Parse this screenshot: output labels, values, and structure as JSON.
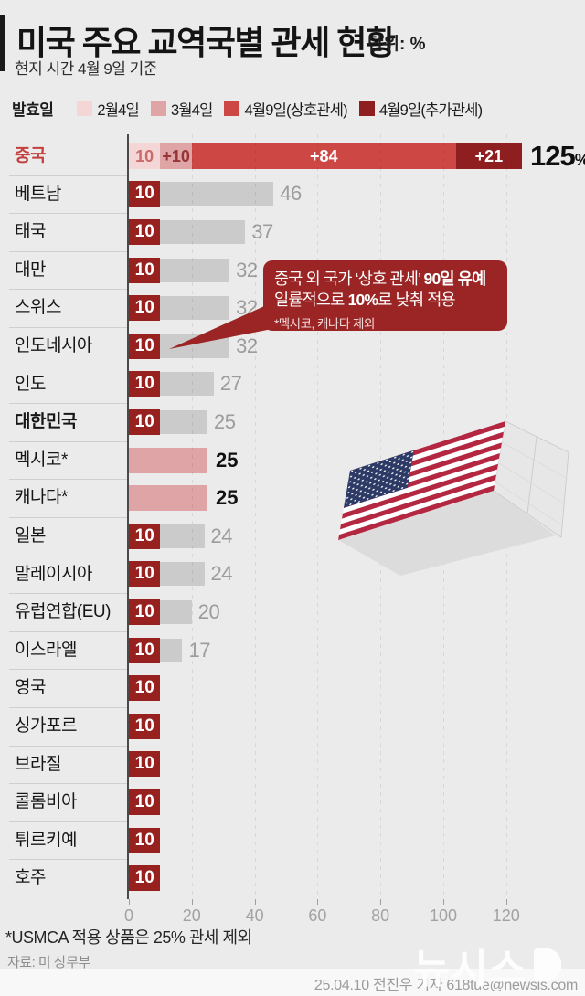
{
  "header": {
    "title": "미국 주요 교역국별 관세 현황",
    "unit_label": "단위: %",
    "subtitle": "현지 시간 4월 9일 기준"
  },
  "legend": {
    "label": "발효일",
    "items": [
      {
        "label": "2월4일",
        "color": "#f5d6d7"
      },
      {
        "label": "3월4일",
        "color": "#dfa5a6"
      },
      {
        "label": "4월9일(상호관세)",
        "color": "#cd4845"
      },
      {
        "label": "4월9일(추가관세)",
        "color": "#8e1e20"
      }
    ]
  },
  "colors": {
    "background": "#ebebeb",
    "bar_gray": "#cbcbcb",
    "base_box_red": "#97211f",
    "pink_bar": "#dfa5a6",
    "gray_value_text": "#9c9c9c",
    "china_label_red": "#c43f3d",
    "callout_bg": "#9b2424"
  },
  "chart_data": {
    "type": "bar",
    "orientation": "horizontal",
    "unit": "%",
    "xlim": [
      0,
      137
    ],
    "gridlines": [
      20,
      40,
      60,
      80,
      100,
      120
    ],
    "grid": "dashed-vertical",
    "rows": [
      {
        "country": "중국",
        "label_style": "china",
        "total": 125,
        "total_label": "125",
        "total_unit": "%",
        "segments": [
          {
            "label": "10",
            "value": 10,
            "effective": "2월4일",
            "color": "#f5d6d7",
            "text_color": "#c96b6b"
          },
          {
            "label": "+10",
            "value": 10,
            "effective": "3월4일",
            "color": "#dfa5a6",
            "text_color": "#973434"
          },
          {
            "label": "+84",
            "value": 84,
            "effective": "4월9일(상호관세)",
            "color": "#cd4845",
            "text_color": "#ffffff"
          },
          {
            "label": "+21",
            "value": 21,
            "effective": "4월9일(추가관세)",
            "color": "#8e1e20",
            "text_color": "#ffffff"
          }
        ]
      },
      {
        "country": "베트남",
        "base": 10,
        "suspended": 46
      },
      {
        "country": "태국",
        "base": 10,
        "suspended": 37
      },
      {
        "country": "대만",
        "base": 10,
        "suspended": 32
      },
      {
        "country": "스위스",
        "base": 10,
        "suspended": 32
      },
      {
        "country": "인도네시아",
        "base": 10,
        "suspended": 32
      },
      {
        "country": "인도",
        "base": 10,
        "suspended": 27
      },
      {
        "country": "대한민국",
        "label_style": "bold",
        "base": 10,
        "suspended": 25
      },
      {
        "country": "멕시코*",
        "bar_style": "pink",
        "value": 25,
        "effective": "3월4일"
      },
      {
        "country": "캐나다*",
        "bar_style": "pink",
        "value": 25,
        "effective": "3월4일"
      },
      {
        "country": "일본",
        "base": 10,
        "suspended": 24
      },
      {
        "country": "말레이시아",
        "base": 10,
        "suspended": 24
      },
      {
        "country": "유럽연합(EU)",
        "base": 10,
        "suspended": 20
      },
      {
        "country": "이스라엘",
        "base": 10,
        "suspended": 17
      },
      {
        "country": "영국",
        "base": 10
      },
      {
        "country": "싱가포르",
        "base": 10
      },
      {
        "country": "브라질",
        "base": 10
      },
      {
        "country": "콜롬비아",
        "base": 10
      },
      {
        "country": "튀르키예",
        "base": 10
      },
      {
        "country": "호주",
        "base": 10
      }
    ]
  },
  "axis": {
    "ticks": [
      0,
      20,
      40,
      60,
      80,
      100,
      120
    ]
  },
  "callout": {
    "l1a": "중국 외 국가 ‘상호 관세’ ",
    "l1b": "90일 유예",
    "l2a": "일률적으로 ",
    "l2b": "10%",
    "l2c": "로 낮춰 적용",
    "note": "*멕시코, 캐나다 제외"
  },
  "footer": {
    "footnote": "*USMCA 적용 상품은 25% 관세 제외",
    "source": "자료: 미 상무부",
    "watermark": "뉴시스",
    "credit": "25.04.10 전진우 기자 618tue@newsis.com"
  }
}
